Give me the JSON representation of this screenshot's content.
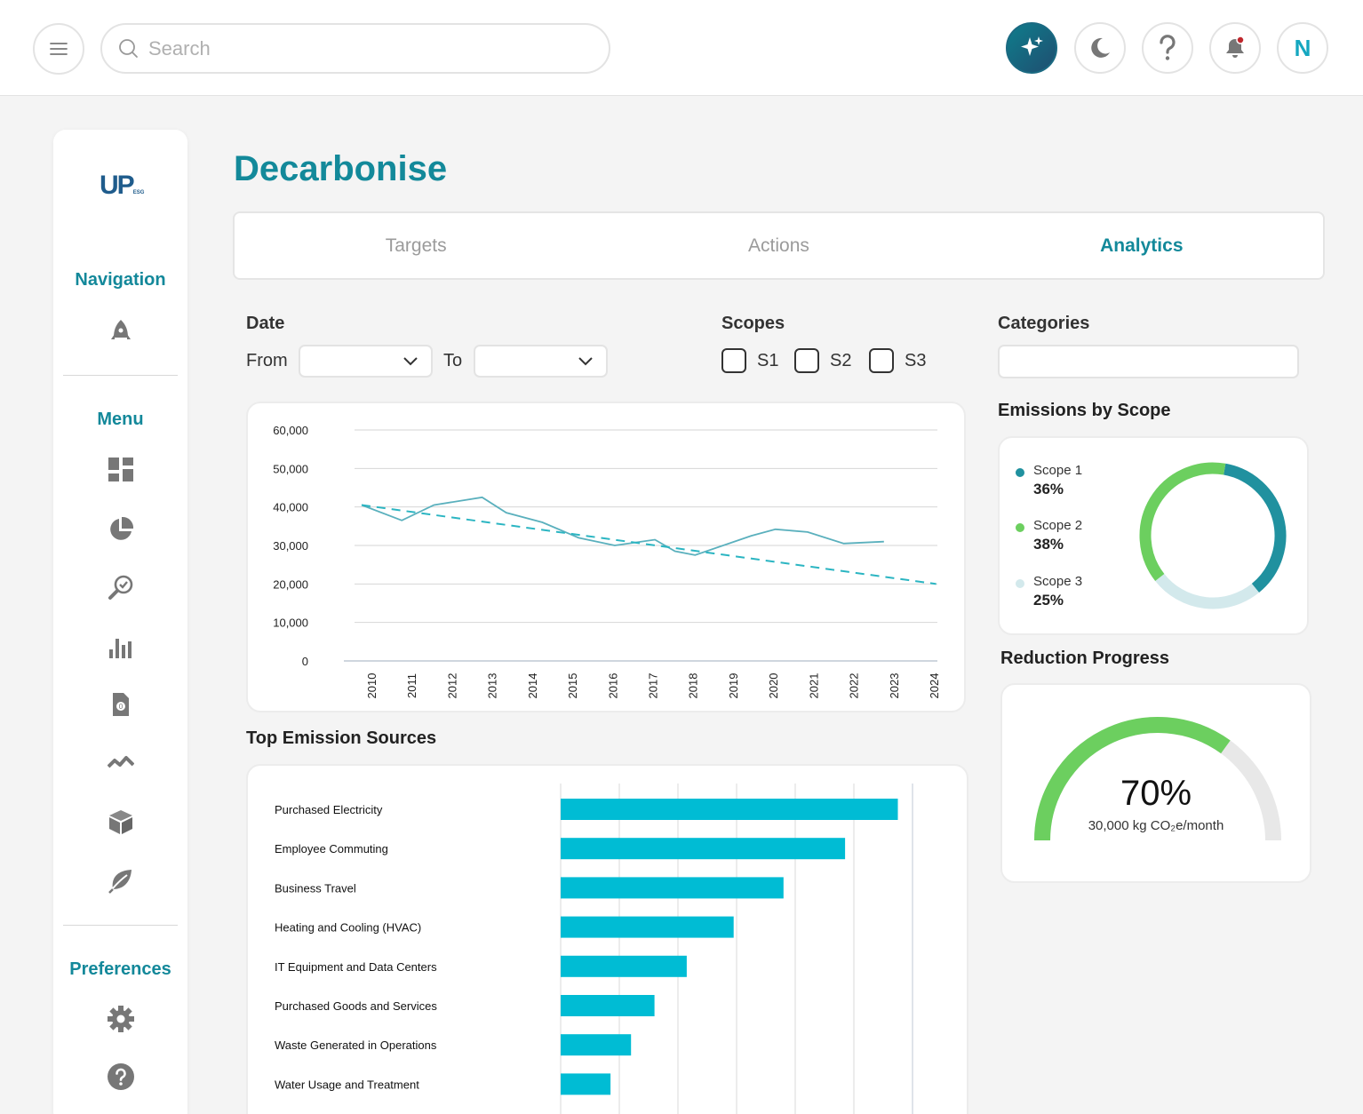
{
  "header": {
    "search_placeholder": "Search",
    "avatar_initial": "N"
  },
  "sidebar": {
    "logo_text": "UP",
    "logo_sub": "ESG",
    "navigation_title": "Navigation",
    "menu_title": "Menu",
    "preferences_title": "Preferences"
  },
  "page": {
    "title": "Decarbonise",
    "tabs": [
      {
        "label": "Targets",
        "active": false
      },
      {
        "label": "Actions",
        "active": false
      },
      {
        "label": "Analytics",
        "active": true
      }
    ]
  },
  "filters": {
    "date_label": "Date",
    "from_label": "From",
    "to_label": "To",
    "scopes_label": "Scopes",
    "scope_options": [
      "S1",
      "S2",
      "S3"
    ],
    "categories_label": "Categories"
  },
  "colors": {
    "accent": "#13899a",
    "line": "#5ab0bd",
    "trend": "#2bb5c2",
    "bar": "#00bcd4",
    "scope1": "#20919f",
    "scope2": "#6ccf5f",
    "scope3": "#d3e9ec",
    "gauge_fill": "#6ccf5f",
    "gauge_track": "#e8e8e8"
  },
  "chart_data": [
    {
      "type": "line",
      "x": [
        "2010",
        "2011",
        "2012",
        "2013",
        "2014",
        "2015",
        "2016",
        "2017",
        "2018",
        "2019",
        "2020",
        "2021",
        "2022",
        "2023",
        "2024"
      ],
      "series": [
        {
          "values": [
            40500,
            36500,
            40500,
            42500,
            38500,
            36000,
            32000,
            30000,
            31500,
            28500,
            27500,
            32500,
            34200,
            33500,
            30500,
            31000
          ],
          "x_values": [
            2010,
            2011,
            2011.8,
            2013,
            2013.6,
            2014.5,
            2015.4,
            2016.3,
            2017.3,
            2017.8,
            2018.3,
            2019.7,
            2020.3,
            2021.1,
            2022,
            2023
          ]
        },
        {
          "style": "dashed",
          "values": [
            40500,
            20000
          ],
          "x_values": [
            2010,
            2024.3
          ]
        }
      ],
      "y_ticks": [
        "60,000",
        "50,000",
        "40,000",
        "30,000",
        "20,000",
        "10,000",
        "0"
      ],
      "ylim": [
        0,
        60000
      ]
    },
    {
      "type": "bar",
      "orientation": "horizontal",
      "title": "Top Emission Sources",
      "categories": [
        "Purchased Electricity",
        "Employee Commuting",
        "Business Travel",
        "Heating and Cooling (HVAC)",
        "IT Equipment and Data Centers",
        "Purchased Goods and Services",
        "Waste Generated in Operations",
        "Water Usage and Treatment"
      ],
      "values": [
        5.75,
        4.85,
        3.8,
        2.95,
        2.15,
        1.6,
        1.2,
        0.85
      ],
      "xlim": [
        0,
        6
      ]
    },
    {
      "type": "pie",
      "title": "Emissions by Scope",
      "categories": [
        "Scope 1",
        "Scope 2",
        "Scope 3"
      ],
      "values": [
        36,
        38,
        25
      ],
      "labels": [
        "36%",
        "38%",
        "25%"
      ]
    }
  ],
  "reduction": {
    "title": "Reduction Progress",
    "percent_label": "70%",
    "fraction": 0.7,
    "sub_label": "30,000 kg CO₂e/month"
  }
}
